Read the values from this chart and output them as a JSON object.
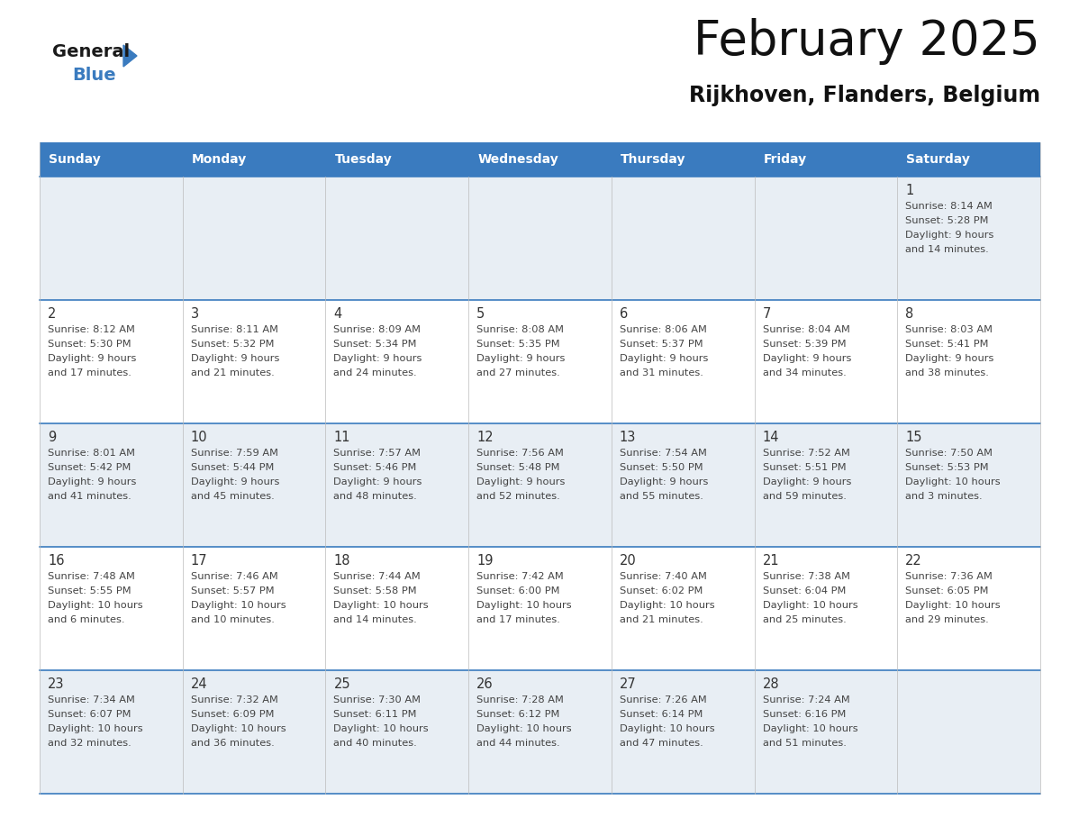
{
  "title": "February 2025",
  "subtitle": "Rijkhoven, Flanders, Belgium",
  "header_bg": "#3a7bbf",
  "header_text_color": "#ffffff",
  "cell_bg_odd": "#e8eef4",
  "cell_bg_even": "#ffffff",
  "day_number_color": "#333333",
  "cell_text_color": "#444444",
  "grid_line_color": "#3a7bbf",
  "border_color": "#3a7bbf",
  "days_of_week": [
    "Sunday",
    "Monday",
    "Tuesday",
    "Wednesday",
    "Thursday",
    "Friday",
    "Saturday"
  ],
  "calendar_data": [
    [
      null,
      null,
      null,
      null,
      null,
      null,
      {
        "day": "1",
        "sunrise": "8:14 AM",
        "sunset": "5:28 PM",
        "daylight": "9 hours\nand 14 minutes."
      }
    ],
    [
      {
        "day": "2",
        "sunrise": "8:12 AM",
        "sunset": "5:30 PM",
        "daylight": "9 hours\nand 17 minutes."
      },
      {
        "day": "3",
        "sunrise": "8:11 AM",
        "sunset": "5:32 PM",
        "daylight": "9 hours\nand 21 minutes."
      },
      {
        "day": "4",
        "sunrise": "8:09 AM",
        "sunset": "5:34 PM",
        "daylight": "9 hours\nand 24 minutes."
      },
      {
        "day": "5",
        "sunrise": "8:08 AM",
        "sunset": "5:35 PM",
        "daylight": "9 hours\nand 27 minutes."
      },
      {
        "day": "6",
        "sunrise": "8:06 AM",
        "sunset": "5:37 PM",
        "daylight": "9 hours\nand 31 minutes."
      },
      {
        "day": "7",
        "sunrise": "8:04 AM",
        "sunset": "5:39 PM",
        "daylight": "9 hours\nand 34 minutes."
      },
      {
        "day": "8",
        "sunrise": "8:03 AM",
        "sunset": "5:41 PM",
        "daylight": "9 hours\nand 38 minutes."
      }
    ],
    [
      {
        "day": "9",
        "sunrise": "8:01 AM",
        "sunset": "5:42 PM",
        "daylight": "9 hours\nand 41 minutes."
      },
      {
        "day": "10",
        "sunrise": "7:59 AM",
        "sunset": "5:44 PM",
        "daylight": "9 hours\nand 45 minutes."
      },
      {
        "day": "11",
        "sunrise": "7:57 AM",
        "sunset": "5:46 PM",
        "daylight": "9 hours\nand 48 minutes."
      },
      {
        "day": "12",
        "sunrise": "7:56 AM",
        "sunset": "5:48 PM",
        "daylight": "9 hours\nand 52 minutes."
      },
      {
        "day": "13",
        "sunrise": "7:54 AM",
        "sunset": "5:50 PM",
        "daylight": "9 hours\nand 55 minutes."
      },
      {
        "day": "14",
        "sunrise": "7:52 AM",
        "sunset": "5:51 PM",
        "daylight": "9 hours\nand 59 minutes."
      },
      {
        "day": "15",
        "sunrise": "7:50 AM",
        "sunset": "5:53 PM",
        "daylight": "10 hours\nand 3 minutes."
      }
    ],
    [
      {
        "day": "16",
        "sunrise": "7:48 AM",
        "sunset": "5:55 PM",
        "daylight": "10 hours\nand 6 minutes."
      },
      {
        "day": "17",
        "sunrise": "7:46 AM",
        "sunset": "5:57 PM",
        "daylight": "10 hours\nand 10 minutes."
      },
      {
        "day": "18",
        "sunrise": "7:44 AM",
        "sunset": "5:58 PM",
        "daylight": "10 hours\nand 14 minutes."
      },
      {
        "day": "19",
        "sunrise": "7:42 AM",
        "sunset": "6:00 PM",
        "daylight": "10 hours\nand 17 minutes."
      },
      {
        "day": "20",
        "sunrise": "7:40 AM",
        "sunset": "6:02 PM",
        "daylight": "10 hours\nand 21 minutes."
      },
      {
        "day": "21",
        "sunrise": "7:38 AM",
        "sunset": "6:04 PM",
        "daylight": "10 hours\nand 25 minutes."
      },
      {
        "day": "22",
        "sunrise": "7:36 AM",
        "sunset": "6:05 PM",
        "daylight": "10 hours\nand 29 minutes."
      }
    ],
    [
      {
        "day": "23",
        "sunrise": "7:34 AM",
        "sunset": "6:07 PM",
        "daylight": "10 hours\nand 32 minutes."
      },
      {
        "day": "24",
        "sunrise": "7:32 AM",
        "sunset": "6:09 PM",
        "daylight": "10 hours\nand 36 minutes."
      },
      {
        "day": "25",
        "sunrise": "7:30 AM",
        "sunset": "6:11 PM",
        "daylight": "10 hours\nand 40 minutes."
      },
      {
        "day": "26",
        "sunrise": "7:28 AM",
        "sunset": "6:12 PM",
        "daylight": "10 hours\nand 44 minutes."
      },
      {
        "day": "27",
        "sunrise": "7:26 AM",
        "sunset": "6:14 PM",
        "daylight": "10 hours\nand 47 minutes."
      },
      {
        "day": "28",
        "sunrise": "7:24 AM",
        "sunset": "6:16 PM",
        "daylight": "10 hours\nand 51 minutes."
      },
      null
    ]
  ],
  "logo_general_color": "#1a1a1a",
  "logo_blue_color": "#3a7bbf",
  "logo_triangle_color": "#3a7bbf"
}
